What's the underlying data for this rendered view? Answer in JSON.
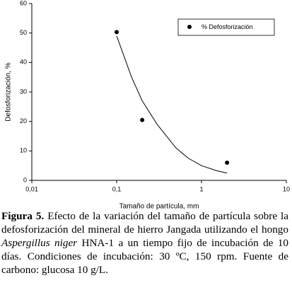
{
  "chart_data": {
    "type": "scatter",
    "x_label": "Tamaño de partícula, mm",
    "y_label": "Defosforización, %",
    "xscale": "log",
    "xlim": [
      0.01,
      10
    ],
    "xticks": [
      {
        "value": 0.01,
        "label": "0,01"
      },
      {
        "value": 0.1,
        "label": "0,1"
      },
      1,
      10
    ],
    "ylim": [
      0,
      60
    ],
    "yticks": [
      0,
      10,
      20,
      30,
      40,
      50,
      60
    ],
    "legend": "upper right",
    "series": [
      {
        "name": "% Defosforización",
        "color": "#000000",
        "x": [
          0.1,
          0.2,
          2
        ],
        "values": [
          50.3,
          20.5,
          6
        ]
      }
    ],
    "fit_curve": {
      "color": "#000000",
      "x": [
        0.1,
        0.15,
        0.2,
        0.3,
        0.5,
        0.7,
        1,
        1.5,
        2
      ],
      "values": [
        49,
        35,
        27,
        19,
        11,
        7.5,
        5,
        3.3,
        2.5
      ]
    }
  },
  "caption": {
    "label": "Figura 5.",
    "text_before": " Efecto de la variación del tamaño de partícula sobre la defosforización del mineral de hierro Jangada utilizando el hongo ",
    "italic": "Aspergillus niger",
    "text_after": " HNA-1 a un tiempo fijo de incubación de 10 días. Condiciones de incubación: 30 ºC, 150 rpm. Fuente de carbono: glucosa 10 g/L."
  }
}
